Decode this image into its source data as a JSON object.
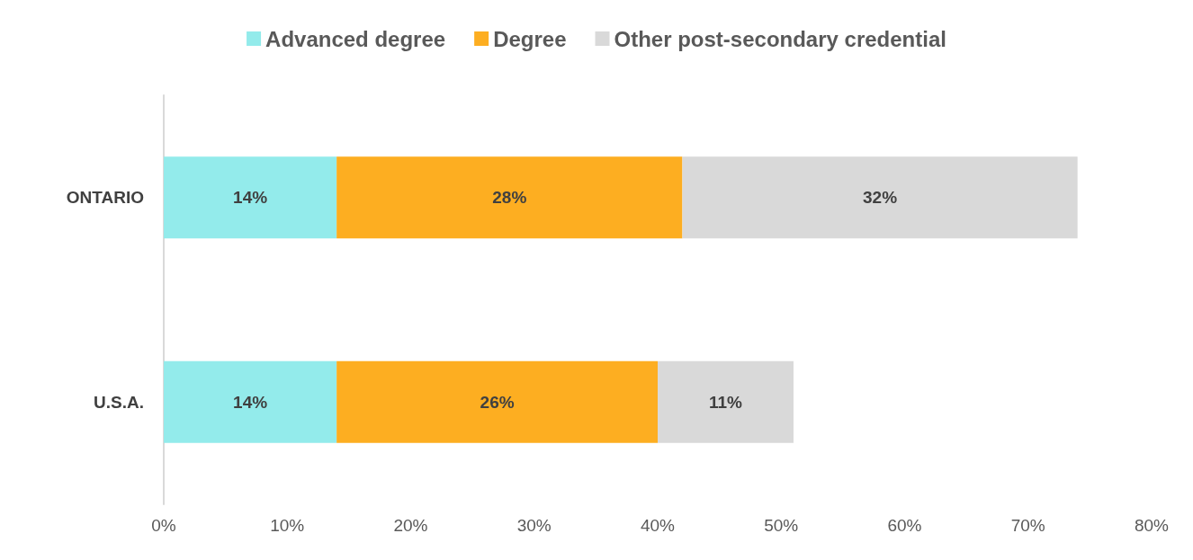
{
  "chart_data": {
    "type": "bar",
    "orientation": "horizontal",
    "stacked": true,
    "categories": [
      "ONTARIO",
      "U.S.A."
    ],
    "series": [
      {
        "name": "Advanced degree",
        "color": "#93ebeb",
        "values": [
          14,
          14
        ],
        "value_labels": [
          "14%",
          "14%"
        ]
      },
      {
        "name": "Degree",
        "color": "#fdae21",
        "values": [
          28,
          26
        ],
        "value_labels": [
          "28%",
          "26%"
        ]
      },
      {
        "name": "Other post-secondary credential",
        "color": "#d9d9d9",
        "values": [
          32,
          11
        ],
        "value_labels": [
          "32%",
          "11%"
        ]
      }
    ],
    "xlim": [
      0,
      80
    ],
    "xticks": [
      {
        "value": 0,
        "label": "0%"
      },
      {
        "value": 10,
        "label": "10%"
      },
      {
        "value": 20,
        "label": "20%"
      },
      {
        "value": 30,
        "label": "30%"
      },
      {
        "value": 40,
        "label": "40%"
      },
      {
        "value": 50,
        "label": "50%"
      },
      {
        "value": 60,
        "label": "60%"
      },
      {
        "value": 70,
        "label": "70%"
      },
      {
        "value": 80,
        "label": "80%"
      }
    ],
    "grid": false,
    "legend": "top"
  }
}
